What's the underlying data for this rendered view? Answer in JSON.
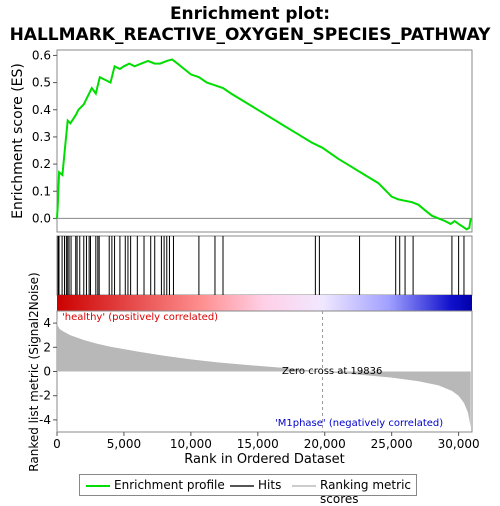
{
  "title_line1": "Enrichment plot:",
  "title_line2": "HALLMARK_REACTIVE_OXYGEN_SPECIES_PATHWAY",
  "legend": {
    "enrichment": "Enrichment profile",
    "hits": "Hits",
    "ranking": "Ranking metric scores"
  },
  "colors": {
    "enrichment": "#00dd00",
    "hits": "#000000",
    "metric": "#b8b8b8",
    "positive": "#dd0000",
    "negative": "#0000cc"
  },
  "annotations": {
    "positive": "'healthy' (positively correlated)",
    "negative": "'M1phase' (negatively correlated)",
    "zero_cross": "Zero cross at 19836"
  },
  "chart_data": [
    {
      "type": "line",
      "ylabel": "Enrichment score (ES)",
      "xlim": [
        0,
        31000
      ],
      "ylim": [
        -0.05,
        0.62
      ],
      "yticks": [
        0.0,
        0.1,
        0.2,
        0.3,
        0.4,
        0.5,
        0.6
      ],
      "tick_labels": [
        "0.0",
        "0.1",
        "0.2",
        "0.3",
        "0.4",
        "0.5",
        "0.6"
      ],
      "grid": false,
      "series": [
        {
          "x": [
            0,
            60,
            160,
            400,
            600,
            800,
            1000,
            1400,
            1600,
            2000,
            2300,
            2600,
            2900,
            3200,
            3600,
            4000,
            4300,
            4700,
            5000,
            5400,
            5800,
            6300,
            6800,
            7300,
            7700,
            8200,
            8600,
            9000,
            9500,
            10000,
            10600,
            11200,
            11800,
            12400,
            13000,
            14000,
            15000,
            16000,
            17000,
            18000,
            19000,
            19836,
            21000,
            22000,
            23000,
            24000,
            25000,
            25500,
            26000,
            26500,
            27000,
            27500,
            28000,
            28500,
            29000,
            29400,
            29700,
            30000,
            30300,
            30600,
            30800,
            30900
          ],
          "y": [
            0.0,
            0.05,
            0.17,
            0.16,
            0.26,
            0.36,
            0.35,
            0.38,
            0.4,
            0.42,
            0.45,
            0.48,
            0.46,
            0.52,
            0.51,
            0.5,
            0.56,
            0.55,
            0.56,
            0.57,
            0.56,
            0.57,
            0.58,
            0.57,
            0.57,
            0.58,
            0.585,
            0.57,
            0.55,
            0.53,
            0.52,
            0.5,
            0.49,
            0.48,
            0.46,
            0.43,
            0.4,
            0.37,
            0.34,
            0.31,
            0.28,
            0.26,
            0.22,
            0.19,
            0.16,
            0.13,
            0.08,
            0.07,
            0.065,
            0.06,
            0.05,
            0.03,
            0.01,
            0.0,
            -0.01,
            -0.02,
            -0.01,
            -0.02,
            -0.03,
            -0.04,
            -0.035,
            0.0
          ]
        }
      ]
    },
    {
      "type": "scatter",
      "title": "Hits",
      "hits": [
        80,
        150,
        380,
        560,
        700,
        800,
        900,
        1050,
        1400,
        1500,
        1700,
        2000,
        2200,
        2400,
        2500,
        2900,
        3050,
        3150,
        3900,
        4100,
        4300,
        4700,
        5100,
        5300,
        5500,
        6000,
        6500,
        7000,
        7300,
        7800,
        8000,
        8200,
        8400,
        8700,
        10600,
        11800,
        12400,
        19300,
        19600,
        22600,
        25300,
        25600,
        26000,
        26600,
        29500,
        30000,
        30400
      ]
    },
    {
      "type": "area",
      "xlabel": "Rank in Ordered Dataset",
      "ylabel": "Ranked list metric (Signal2Noise)",
      "xlim": [
        0,
        31000
      ],
      "ylim": [
        -5,
        5
      ],
      "yticks": [
        -4,
        -2,
        0,
        2,
        4
      ],
      "tick_labels": [
        "-4",
        "-2",
        "0",
        "2",
        "4"
      ],
      "xticks": [
        0,
        5000,
        10000,
        15000,
        20000,
        25000,
        30000
      ],
      "xtick_labels": [
        "0",
        "5,000",
        "10,000",
        "15,000",
        "20,000",
        "25,000",
        "30,000"
      ],
      "zero_cross": 19836,
      "x": [
        0,
        50,
        200,
        500,
        1000,
        2000,
        3000,
        4000,
        5000,
        6000,
        8000,
        10000,
        12000,
        14000,
        16000,
        18000,
        19836,
        21000,
        23000,
        25000,
        27000,
        28500,
        29500,
        30000,
        30400,
        30700,
        30900
      ],
      "values": [
        4.4,
        3.8,
        3.5,
        3.3,
        3.0,
        2.6,
        2.3,
        2.05,
        1.85,
        1.65,
        1.3,
        1.0,
        0.75,
        0.55,
        0.38,
        0.2,
        0.0,
        -0.12,
        -0.3,
        -0.5,
        -0.8,
        -1.15,
        -1.6,
        -2.0,
        -2.6,
        -3.4,
        -4.6
      ]
    }
  ]
}
